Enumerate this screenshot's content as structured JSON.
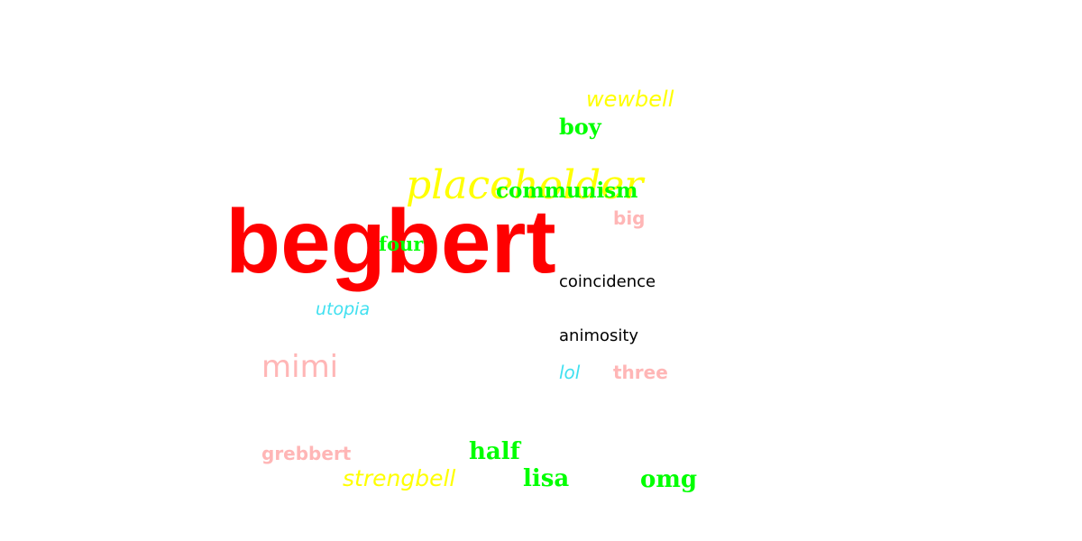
{
  "words": {
    "begbert": {
      "text": "begbert",
      "color": "#ff0000"
    },
    "placeholder": {
      "text": "placeholder",
      "color": "#ffff00"
    },
    "communism": {
      "text": "communism",
      "color": "#00ff00"
    },
    "wewbell": {
      "text": "wewbell",
      "color": "#ffff00"
    },
    "boy": {
      "text": "boy",
      "color": "#00ff00"
    },
    "big": {
      "text": "big",
      "color": "#ffb6b6"
    },
    "four": {
      "text": "four",
      "color": "#00ff00"
    },
    "coincidence": {
      "text": "coincidence",
      "color": "#000000"
    },
    "utopia": {
      "text": "utopia",
      "color": "#40e0f0"
    },
    "animosity": {
      "text": "animosity",
      "color": "#000000"
    },
    "mimi": {
      "text": "mimi",
      "color": "#ffb6b6"
    },
    "lol": {
      "text": "lol",
      "color": "#40e0f0"
    },
    "three": {
      "text": "three",
      "color": "#ffb6b6"
    },
    "grebbert": {
      "text": "grebbert",
      "color": "#ffb6b6"
    },
    "half": {
      "text": "half",
      "color": "#00ff00"
    },
    "strengbell": {
      "text": "strengbell",
      "color": "#ffff00"
    },
    "lisa": {
      "text": "lisa",
      "color": "#00ff00"
    },
    "omg": {
      "text": "omg",
      "color": "#00ff00"
    }
  }
}
